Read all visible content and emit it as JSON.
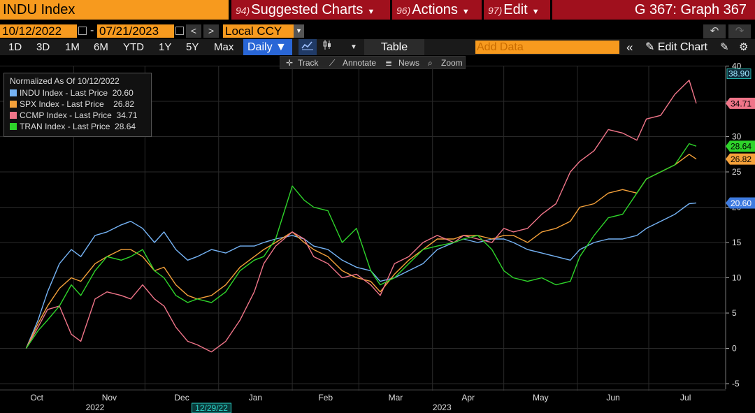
{
  "header": {
    "ticker": "INDU Index",
    "suggested_num": "94)",
    "suggested_label": "Suggested Charts",
    "actions_num": "96)",
    "actions_label": "Actions",
    "edit_num": "97)",
    "edit_label": "Edit",
    "graph_title": "G 367: Graph 367"
  },
  "daterange": {
    "start": "10/12/2022",
    "end": "07/21/2023",
    "currency": "Local CCY"
  },
  "toolbar": {
    "periods": [
      "1D",
      "3D",
      "1M",
      "6M",
      "YTD",
      "1Y",
      "5Y",
      "Max"
    ],
    "frequency": "Daily",
    "table_label": "Table",
    "add_data_placeholder": "Add Data",
    "edit_chart_label": "Edit Chart"
  },
  "subtoolbar": {
    "track": "Track",
    "annotate": "Annotate",
    "news": "News",
    "zoom": "Zoom"
  },
  "colors": {
    "accent_orange": "#f79a1e",
    "header_red": "#a0101d",
    "indu": "#75b3f5",
    "spx": "#f5a13a",
    "ccmp": "#f07589",
    "tran": "#2ed42a"
  },
  "chart_data": {
    "type": "line",
    "legend_title": "Normalized As Of 10/12/2022",
    "legend_position": "top-left",
    "ylim": [
      -5,
      40
    ],
    "yticks": [
      "-5",
      "0",
      "5",
      "10",
      "15",
      "20",
      "25",
      "30",
      "35",
      "40"
    ],
    "x_month_labels": [
      "Oct",
      "Nov",
      "Dec",
      "Jan",
      "Feb",
      "Mar",
      "Apr",
      "May",
      "Jun",
      "Jul"
    ],
    "x_year_labels": [
      "2022",
      "2023"
    ],
    "cursor_date": "12/29/22",
    "grid": true,
    "series": [
      {
        "name": "INDU Index - Last Price",
        "last": "20.60",
        "color": "#75b3f5",
        "points": [
          [
            "10/12/2022",
            0
          ],
          [
            "10/17/2022",
            4
          ],
          [
            "10/21/2022",
            8
          ],
          [
            "10/26/2022",
            12
          ],
          [
            "10/31/2022",
            14
          ],
          [
            "11/4/2022",
            13
          ],
          [
            "11/10/2022",
            16
          ],
          [
            "11/15/2022",
            16.5
          ],
          [
            "11/21/2022",
            17.5
          ],
          [
            "11/25/2022",
            18
          ],
          [
            "11/30/2022",
            17
          ],
          [
            "12/5/2022",
            15
          ],
          [
            "12/9/2022",
            16.5
          ],
          [
            "12/14/2022",
            14
          ],
          [
            "12/19/2022",
            12.5
          ],
          [
            "12/23/2022",
            13
          ],
          [
            "12/29/2022",
            14
          ],
          [
            "1/4/2023",
            13.5
          ],
          [
            "1/10/2023",
            14.5
          ],
          [
            "1/16/2023",
            14.5
          ],
          [
            "1/20/2023",
            15
          ],
          [
            "1/25/2023",
            15.5
          ],
          [
            "2/1/2023",
            16
          ],
          [
            "2/6/2023",
            15.5
          ],
          [
            "2/10/2023",
            14.5
          ],
          [
            "2/16/2023",
            14
          ],
          [
            "2/22/2023",
            12.5
          ],
          [
            "2/28/2023",
            11.5
          ],
          [
            "3/6/2023",
            11
          ],
          [
            "3/10/2023",
            9.5
          ],
          [
            "3/16/2023",
            10
          ],
          [
            "3/22/2023",
            11
          ],
          [
            "3/28/2023",
            12
          ],
          [
            "4/3/2023",
            14
          ],
          [
            "4/10/2023",
            15
          ],
          [
            "4/14/2023",
            15.5
          ],
          [
            "4/20/2023",
            15
          ],
          [
            "4/26/2023",
            15.5
          ],
          [
            "5/1/2023",
            15.5
          ],
          [
            "5/5/2023",
            15
          ],
          [
            "5/11/2023",
            14
          ],
          [
            "5/17/2023",
            13.5
          ],
          [
            "5/23/2023",
            13
          ],
          [
            "5/29/2023",
            12.5
          ],
          [
            "6/2/2023",
            14
          ],
          [
            "6/8/2023",
            15
          ],
          [
            "6/14/2023",
            15.5
          ],
          [
            "6/20/2023",
            15.5
          ],
          [
            "6/26/2023",
            16
          ],
          [
            "6/30/2023",
            17
          ],
          [
            "7/6/2023",
            18
          ],
          [
            "7/12/2023",
            19
          ],
          [
            "7/18/2023",
            20.5
          ],
          [
            "7/21/2023",
            20.6
          ]
        ]
      },
      {
        "name": "SPX Index - Last Price",
        "last": "26.82",
        "color": "#f5a13a",
        "points": [
          [
            "10/12/2022",
            0
          ],
          [
            "10/17/2022",
            3.5
          ],
          [
            "10/21/2022",
            6
          ],
          [
            "10/26/2022",
            8.5
          ],
          [
            "10/31/2022",
            10
          ],
          [
            "11/4/2022",
            9.5
          ],
          [
            "11/10/2022",
            12
          ],
          [
            "11/15/2022",
            13
          ],
          [
            "11/21/2022",
            14
          ],
          [
            "11/25/2022",
            14
          ],
          [
            "11/30/2022",
            13
          ],
          [
            "12/5/2022",
            11
          ],
          [
            "12/9/2022",
            11.5
          ],
          [
            "12/14/2022",
            9
          ],
          [
            "12/19/2022",
            7.5
          ],
          [
            "12/23/2022",
            7
          ],
          [
            "12/29/2022",
            7.5
          ],
          [
            "1/4/2023",
            9
          ],
          [
            "1/10/2023",
            11.5
          ],
          [
            "1/16/2023",
            13
          ],
          [
            "1/20/2023",
            14
          ],
          [
            "1/25/2023",
            15
          ],
          [
            "2/1/2023",
            16.5
          ],
          [
            "2/6/2023",
            15
          ],
          [
            "2/10/2023",
            14
          ],
          [
            "2/16/2023",
            13
          ],
          [
            "2/22/2023",
            11
          ],
          [
            "2/28/2023",
            10
          ],
          [
            "3/6/2023",
            9.5
          ],
          [
            "3/10/2023",
            8
          ],
          [
            "3/16/2023",
            10.5
          ],
          [
            "3/22/2023",
            12.5
          ],
          [
            "3/28/2023",
            14
          ],
          [
            "4/3/2023",
            15.5
          ],
          [
            "4/10/2023",
            15.5
          ],
          [
            "4/14/2023",
            16
          ],
          [
            "4/20/2023",
            16
          ],
          [
            "4/26/2023",
            15.5
          ],
          [
            "5/1/2023",
            16
          ],
          [
            "5/5/2023",
            16
          ],
          [
            "5/11/2023",
            15
          ],
          [
            "5/17/2023",
            16.5
          ],
          [
            "5/23/2023",
            17
          ],
          [
            "5/29/2023",
            18
          ],
          [
            "6/2/2023",
            20
          ],
          [
            "6/8/2023",
            20.5
          ],
          [
            "6/14/2023",
            22
          ],
          [
            "6/20/2023",
            22.5
          ],
          [
            "6/26/2023",
            22
          ],
          [
            "6/30/2023",
            24
          ],
          [
            "7/6/2023",
            25
          ],
          [
            "7/12/2023",
            26
          ],
          [
            "7/18/2023",
            27.5
          ],
          [
            "7/21/2023",
            26.82
          ]
        ]
      },
      {
        "name": "CCMP Index - Last Price",
        "last": "34.71",
        "color": "#f07589",
        "points": [
          [
            "10/12/2022",
            0
          ],
          [
            "10/17/2022",
            3
          ],
          [
            "10/21/2022",
            5.5
          ],
          [
            "10/26/2022",
            6
          ],
          [
            "10/31/2022",
            2
          ],
          [
            "11/4/2022",
            1
          ],
          [
            "11/10/2022",
            7
          ],
          [
            "11/15/2022",
            8
          ],
          [
            "11/21/2022",
            7.5
          ],
          [
            "11/25/2022",
            7
          ],
          [
            "11/30/2022",
            9
          ],
          [
            "12/5/2022",
            7
          ],
          [
            "12/9/2022",
            6
          ],
          [
            "12/14/2022",
            3
          ],
          [
            "12/19/2022",
            1
          ],
          [
            "12/23/2022",
            0.5
          ],
          [
            "12/29/2022",
            -0.5
          ],
          [
            "1/4/2023",
            1
          ],
          [
            "1/10/2023",
            4
          ],
          [
            "1/16/2023",
            8
          ],
          [
            "1/20/2023",
            12
          ],
          [
            "1/25/2023",
            14.5
          ],
          [
            "2/1/2023",
            16.5
          ],
          [
            "2/6/2023",
            15.5
          ],
          [
            "2/10/2023",
            13
          ],
          [
            "2/16/2023",
            12
          ],
          [
            "2/22/2023",
            10
          ],
          [
            "2/28/2023",
            10.5
          ],
          [
            "3/6/2023",
            9
          ],
          [
            "3/10/2023",
            7.5
          ],
          [
            "3/16/2023",
            12
          ],
          [
            "3/22/2023",
            13
          ],
          [
            "3/28/2023",
            15
          ],
          [
            "4/3/2023",
            16
          ],
          [
            "4/10/2023",
            15
          ],
          [
            "4/14/2023",
            16
          ],
          [
            "4/20/2023",
            15.5
          ],
          [
            "4/26/2023",
            15
          ],
          [
            "5/1/2023",
            17
          ],
          [
            "5/5/2023",
            16.5
          ],
          [
            "5/11/2023",
            17
          ],
          [
            "5/17/2023",
            19
          ],
          [
            "5/23/2023",
            20.5
          ],
          [
            "5/29/2023",
            25
          ],
          [
            "6/2/2023",
            26.5
          ],
          [
            "6/8/2023",
            28
          ],
          [
            "6/14/2023",
            31
          ],
          [
            "6/20/2023",
            30.5
          ],
          [
            "6/26/2023",
            29.5
          ],
          [
            "6/30/2023",
            32.5
          ],
          [
            "7/6/2023",
            33
          ],
          [
            "7/12/2023",
            36
          ],
          [
            "7/18/2023",
            38
          ],
          [
            "7/21/2023",
            34.71
          ]
        ]
      },
      {
        "name": "TRAN Index - Last Price",
        "last": "28.64",
        "color": "#2ed42a",
        "points": [
          [
            "10/12/2022",
            0
          ],
          [
            "10/17/2022",
            2.5
          ],
          [
            "10/21/2022",
            4
          ],
          [
            "10/26/2022",
            6
          ],
          [
            "10/31/2022",
            9
          ],
          [
            "11/4/2022",
            7.5
          ],
          [
            "11/10/2022",
            11
          ],
          [
            "11/15/2022",
            13
          ],
          [
            "11/21/2022",
            12.5
          ],
          [
            "11/25/2022",
            13
          ],
          [
            "11/30/2022",
            14
          ],
          [
            "12/5/2022",
            11
          ],
          [
            "12/9/2022",
            10
          ],
          [
            "12/14/2022",
            7.5
          ],
          [
            "12/19/2022",
            6.5
          ],
          [
            "12/23/2022",
            7
          ],
          [
            "12/29/2022",
            6.5
          ],
          [
            "1/4/2023",
            8
          ],
          [
            "1/10/2023",
            11
          ],
          [
            "1/16/2023",
            12.5
          ],
          [
            "1/20/2023",
            13
          ],
          [
            "1/25/2023",
            15.5
          ],
          [
            "2/1/2023",
            23
          ],
          [
            "2/6/2023",
            21
          ],
          [
            "2/10/2023",
            20
          ],
          [
            "2/16/2023",
            19.5
          ],
          [
            "2/22/2023",
            15
          ],
          [
            "2/28/2023",
            17
          ],
          [
            "3/6/2023",
            11
          ],
          [
            "3/10/2023",
            9
          ],
          [
            "3/16/2023",
            10
          ],
          [
            "3/22/2023",
            12
          ],
          [
            "3/28/2023",
            14
          ],
          [
            "4/3/2023",
            14.5
          ],
          [
            "4/10/2023",
            15
          ],
          [
            "4/14/2023",
            15.5
          ],
          [
            "4/20/2023",
            16
          ],
          [
            "4/26/2023",
            14
          ],
          [
            "5/1/2023",
            11
          ],
          [
            "5/5/2023",
            10
          ],
          [
            "5/11/2023",
            9.5
          ],
          [
            "5/17/2023",
            10
          ],
          [
            "5/23/2023",
            9
          ],
          [
            "5/29/2023",
            9.5
          ],
          [
            "6/2/2023",
            13
          ],
          [
            "6/8/2023",
            16
          ],
          [
            "6/14/2023",
            18.5
          ],
          [
            "6/20/2023",
            19
          ],
          [
            "6/26/2023",
            22
          ],
          [
            "6/30/2023",
            24
          ],
          [
            "7/6/2023",
            25
          ],
          [
            "7/12/2023",
            26
          ],
          [
            "7/18/2023",
            29
          ],
          [
            "7/21/2023",
            28.64
          ]
        ]
      }
    ]
  }
}
